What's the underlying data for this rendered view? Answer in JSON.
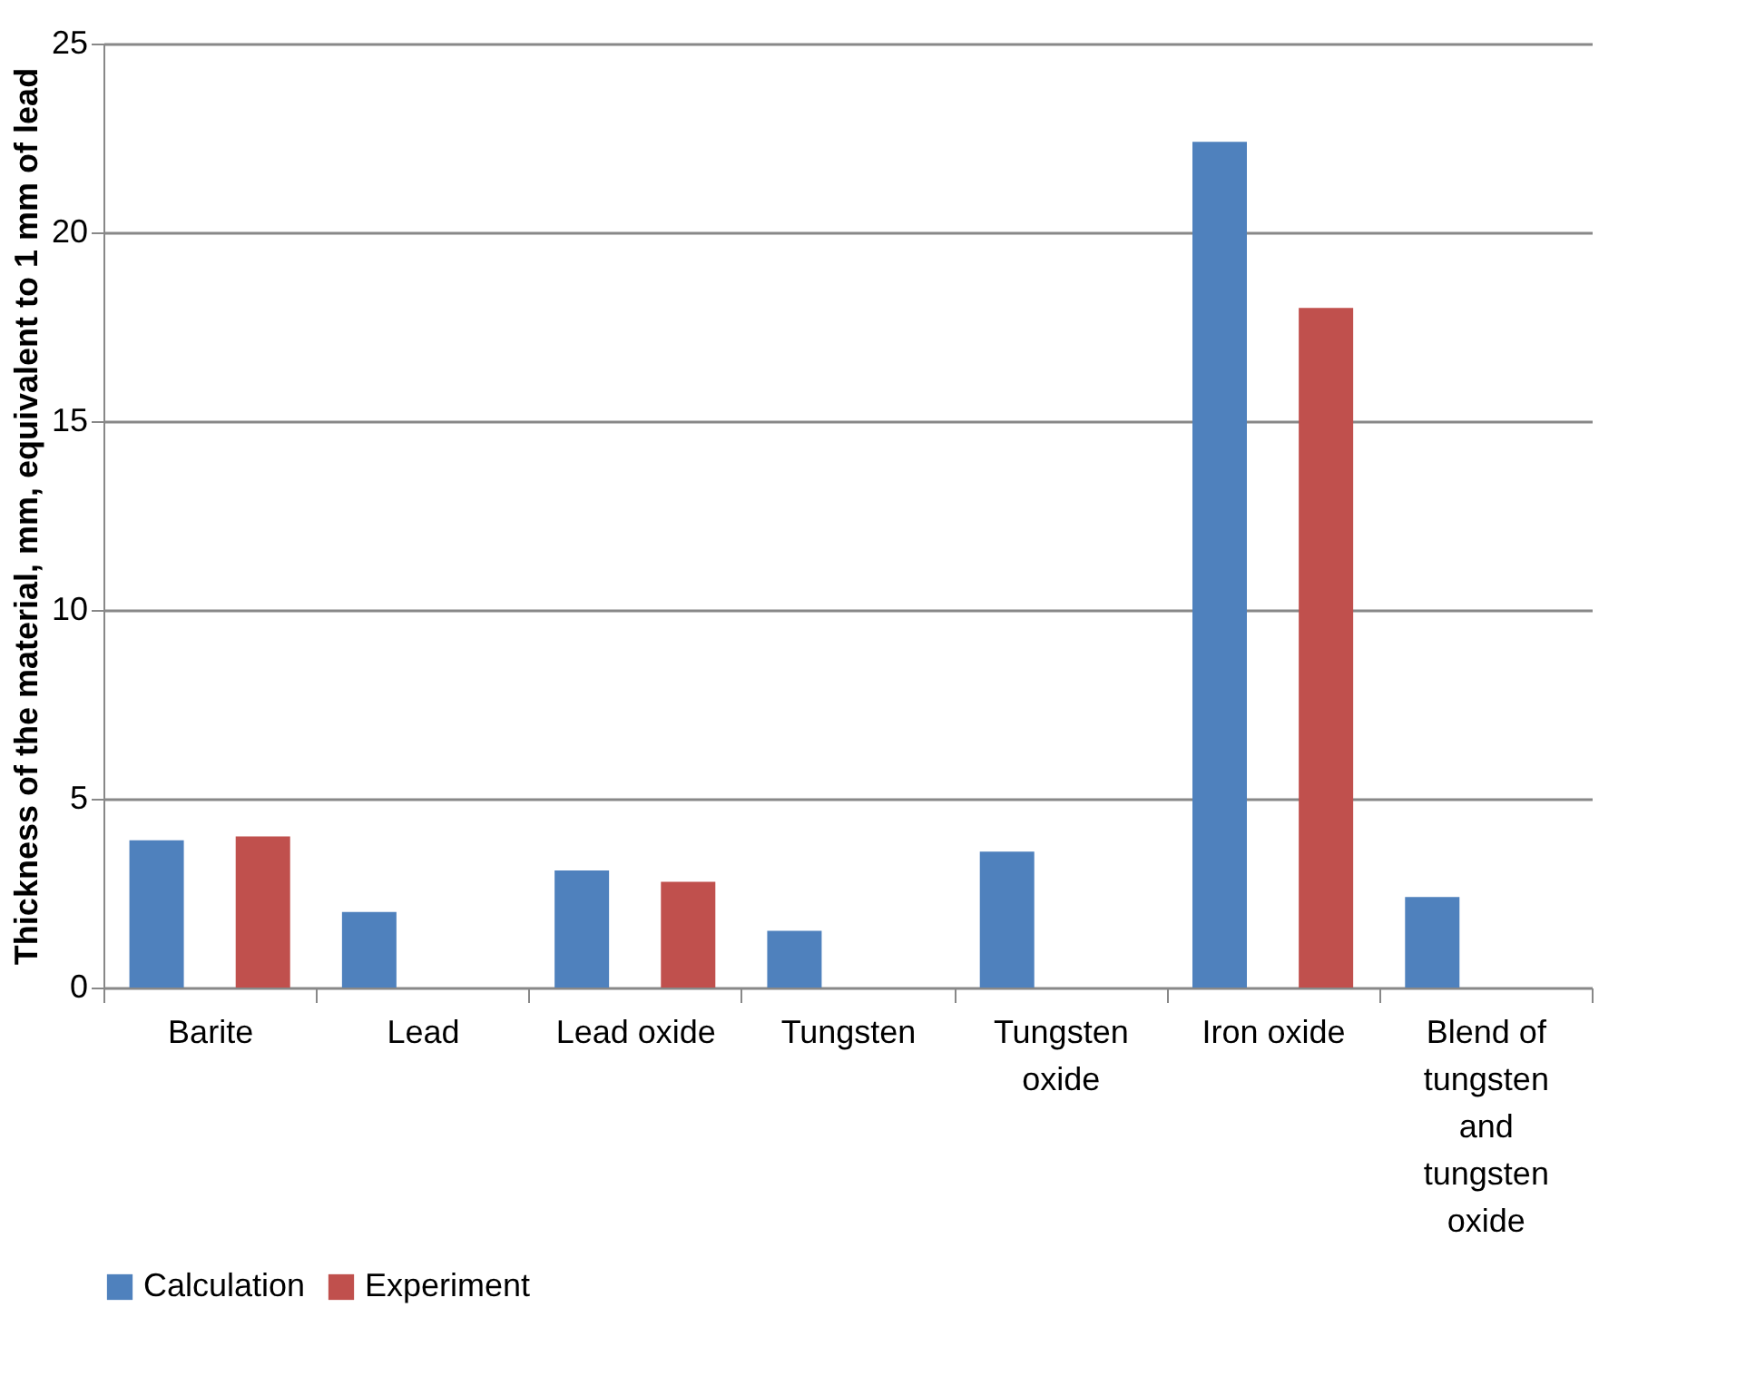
{
  "chart_data": {
    "type": "bar",
    "ylabel": "Thickness of the material, mm, equivalent to 1 mm of lead",
    "categories": [
      "Barite",
      "Lead",
      "Lead oxide",
      "Tungsten",
      "Tungsten oxide",
      "Iron oxide",
      "Blend of tungsten and tungsten oxide"
    ],
    "series": [
      {
        "name": "Calculation",
        "color": "#4f81bd",
        "values": [
          3.9,
          2.0,
          3.1,
          1.5,
          3.6,
          22.4,
          2.4
        ]
      },
      {
        "name": "Experiment",
        "color": "#c0504d",
        "values": [
          4.0,
          null,
          2.8,
          null,
          null,
          18.0,
          null
        ]
      }
    ],
    "ylim": [
      0,
      25
    ],
    "yticks": [
      0,
      5,
      10,
      15,
      20,
      25
    ],
    "grid": "y",
    "legend": "bottom"
  }
}
